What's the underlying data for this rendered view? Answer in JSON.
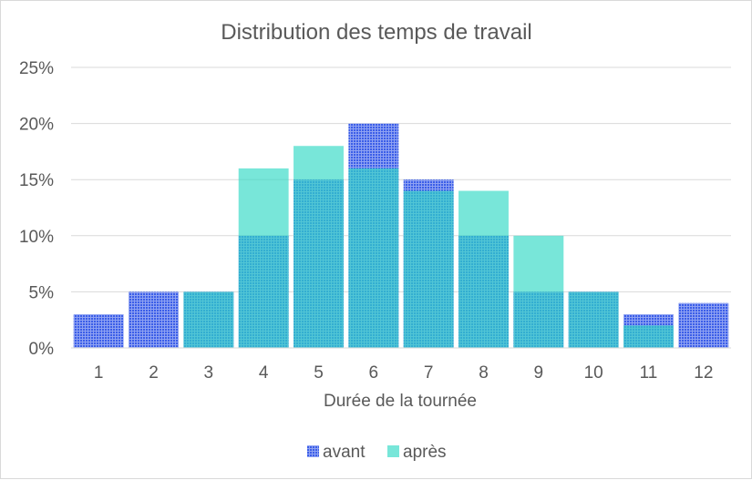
{
  "chart_data": {
    "type": "bar",
    "title": "Distribution des temps de travail",
    "xlabel": "Durée de la tournée",
    "ylabel": "",
    "categories": [
      "1",
      "2",
      "3",
      "4",
      "5",
      "6",
      "7",
      "8",
      "9",
      "10",
      "11",
      "12"
    ],
    "series": [
      {
        "name": "avant",
        "values": [
          3,
          5,
          5,
          10,
          15,
          20,
          15,
          10,
          5,
          5,
          3,
          4
        ],
        "color": "#3b5ee8",
        "pattern": "dotted"
      },
      {
        "name": "après",
        "values": [
          0,
          0,
          5,
          16,
          18,
          16,
          14,
          14,
          10,
          5,
          2,
          0
        ],
        "color": "#2fd8c4",
        "opacity": 0.65
      }
    ],
    "ylim": [
      0,
      25
    ],
    "yticks": [
      "0%",
      "5%",
      "10%",
      "15%",
      "20%",
      "25%"
    ],
    "grid": true,
    "overlap": true,
    "legend_position": "bottom"
  }
}
